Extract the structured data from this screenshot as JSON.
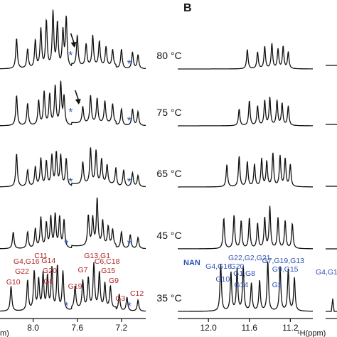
{
  "panel_label_b": "B",
  "chart_data": [
    {
      "type": "line",
      "panel": "A",
      "xlabel": "m)",
      "x_ticks": [
        "8.0",
        "7.6",
        "7.2"
      ],
      "x_tick_values": [
        8.0,
        7.6,
        7.2
      ],
      "xlim": [
        8.3,
        6.98
      ],
      "x_reversed": true,
      "legend": "none",
      "grid": false,
      "temperatures": [
        "80 °C",
        "75 °C",
        "65 °C",
        "45 °C",
        "35 °C"
      ],
      "markers": {
        "star": "*",
        "arrow": "↓",
        "star_color": "#2f52b5",
        "arrow_color": "#111111"
      },
      "series": [
        {
          "temp": "80 °C",
          "peaks": [
            [
              8.15,
              0.55
            ],
            [
              8.05,
              0.35
            ],
            [
              7.98,
              0.5
            ],
            [
              7.93,
              0.7
            ],
            [
              7.88,
              0.85
            ],
            [
              7.82,
              1.0
            ],
            [
              7.78,
              0.8
            ],
            [
              7.73,
              0.65
            ],
            [
              7.7,
              0.9
            ],
            [
              7.6,
              0.55
            ],
            [
              7.52,
              0.4
            ],
            [
              7.46,
              0.55
            ],
            [
              7.4,
              0.45
            ],
            [
              7.34,
              0.35
            ],
            [
              7.28,
              0.3
            ],
            [
              7.2,
              0.35
            ],
            [
              7.1,
              0.3
            ],
            [
              7.05,
              0.25
            ]
          ],
          "stars": [
            7.66,
            7.13
          ],
          "arrow": 7.62
        },
        {
          "temp": "75 °C",
          "peaks": [
            [
              8.15,
              0.55
            ],
            [
              8.05,
              0.4
            ],
            [
              7.95,
              0.45
            ],
            [
              7.9,
              0.6
            ],
            [
              7.85,
              0.55
            ],
            [
              7.8,
              0.7
            ],
            [
              7.75,
              0.75
            ],
            [
              7.72,
              0.5
            ],
            [
              7.55,
              0.3
            ],
            [
              7.48,
              0.5
            ],
            [
              7.42,
              0.45
            ],
            [
              7.35,
              0.4
            ],
            [
              7.28,
              0.35
            ],
            [
              7.2,
              0.3
            ],
            [
              7.1,
              0.3
            ],
            [
              7.05,
              0.25
            ]
          ],
          "stars": [
            7.66,
            7.13
          ],
          "arrow": 7.58
        },
        {
          "temp": "65 °C",
          "peaks": [
            [
              8.15,
              0.6
            ],
            [
              8.05,
              0.3
            ],
            [
              7.98,
              0.35
            ],
            [
              7.93,
              0.5
            ],
            [
              7.88,
              0.45
            ],
            [
              7.83,
              0.55
            ],
            [
              7.79,
              0.6
            ],
            [
              7.75,
              0.55
            ],
            [
              7.7,
              0.5
            ],
            [
              7.55,
              0.4
            ],
            [
              7.48,
              0.65
            ],
            [
              7.43,
              0.6
            ],
            [
              7.38,
              0.45
            ],
            [
              7.33,
              0.35
            ],
            [
              7.25,
              0.3
            ],
            [
              7.18,
              0.3
            ],
            [
              7.1,
              0.25
            ],
            [
              7.05,
              0.2
            ]
          ],
          "stars": [
            7.66,
            7.13
          ]
        },
        {
          "temp": "45 °C",
          "peaks": [
            [
              8.18,
              0.3
            ],
            [
              8.05,
              0.3
            ],
            [
              7.98,
              0.35
            ],
            [
              7.93,
              0.55
            ],
            [
              7.88,
              0.45
            ],
            [
              7.84,
              0.55
            ],
            [
              7.8,
              0.6
            ],
            [
              7.76,
              0.55
            ],
            [
              7.72,
              0.5
            ],
            [
              7.5,
              0.55
            ],
            [
              7.46,
              0.5
            ],
            [
              7.42,
              0.85
            ],
            [
              7.37,
              0.45
            ],
            [
              7.32,
              0.35
            ],
            [
              7.28,
              0.3
            ],
            [
              7.2,
              0.3
            ],
            [
              7.12,
              0.25
            ],
            [
              7.05,
              0.2
            ]
          ],
          "stars": [
            7.7,
            7.13
          ]
        },
        {
          "temp": "35 °C",
          "peaks": [
            [
              8.2,
              0.45
            ],
            [
              8.05,
              0.55
            ],
            [
              7.99,
              0.7
            ],
            [
              7.95,
              0.55
            ],
            [
              7.91,
              0.65
            ],
            [
              7.87,
              0.6
            ],
            [
              7.83,
              0.75
            ],
            [
              7.78,
              0.8
            ],
            [
              7.73,
              0.7
            ],
            [
              7.62,
              0.4
            ],
            [
              7.55,
              0.5
            ],
            [
              7.5,
              0.55
            ],
            [
              7.45,
              0.8
            ],
            [
              7.4,
              0.65
            ],
            [
              7.35,
              0.45
            ],
            [
              7.3,
              0.4
            ],
            [
              7.22,
              0.3
            ],
            [
              7.15,
              0.25
            ],
            [
              7.05,
              0.2
            ]
          ],
          "stars": [
            7.7,
            7.13
          ]
        }
      ],
      "assignments": {
        "color": "#b22525",
        "labels": [
          {
            "text": "G10",
            "x": 8.18,
            "y": 0.78
          },
          {
            "text": "G22",
            "x": 8.1,
            "y": 0.93
          },
          {
            "text": "G4,G16",
            "x": 8.06,
            "y": 1.07
          },
          {
            "text": "C11",
            "x": 7.93,
            "y": 1.15
          },
          {
            "text": "G14",
            "x": 7.86,
            "y": 1.08
          },
          {
            "text": "G20",
            "x": 7.85,
            "y": 0.94
          },
          {
            "text": "G8",
            "x": 7.86,
            "y": 0.79
          },
          {
            "text": "G19",
            "x": 7.62,
            "y": 0.72
          },
          {
            "text": "G7",
            "x": 7.55,
            "y": 0.95
          },
          {
            "text": "G13,G1",
            "x": 7.42,
            "y": 1.15
          },
          {
            "text": "C6,C18",
            "x": 7.33,
            "y": 1.07
          },
          {
            "text": "G15",
            "x": 7.32,
            "y": 0.94
          },
          {
            "text": "G9",
            "x": 7.27,
            "y": 0.8
          },
          {
            "text": "G3",
            "x": 7.21,
            "y": 0.55
          },
          {
            "text": "C12",
            "x": 7.06,
            "y": 0.62
          }
        ]
      }
    },
    {
      "type": "line",
      "panel": "B",
      "xlabel": "¹H(ppm)",
      "x_ticks": [
        "12.0",
        "11.6",
        "11.2"
      ],
      "x_tick_values": [
        12.0,
        11.6,
        11.2
      ],
      "xlim": [
        12.3,
        10.98
      ],
      "x_reversed": true,
      "legend": "none",
      "grid": false,
      "series_label": "NAN",
      "series": [
        {
          "temp": "80 °C",
          "peaks": [
            [
              11.62,
              0.35
            ],
            [
              11.52,
              0.3
            ],
            [
              11.45,
              0.4
            ],
            [
              11.38,
              0.45
            ],
            [
              11.32,
              0.35
            ],
            [
              11.27,
              0.4
            ],
            [
              11.22,
              0.3
            ]
          ]
        },
        {
          "temp": "75 °C",
          "peaks": [
            [
              11.7,
              0.3
            ],
            [
              11.6,
              0.45
            ],
            [
              11.52,
              0.35
            ],
            [
              11.45,
              0.45
            ],
            [
              11.4,
              0.5
            ],
            [
              11.33,
              0.45
            ],
            [
              11.28,
              0.4
            ],
            [
              11.22,
              0.35
            ]
          ]
        },
        {
          "temp": "65 °C",
          "peaks": [
            [
              11.82,
              0.4
            ],
            [
              11.7,
              0.55
            ],
            [
              11.62,
              0.45
            ],
            [
              11.55,
              0.4
            ],
            [
              11.48,
              0.5
            ],
            [
              11.43,
              0.45
            ],
            [
              11.37,
              0.6
            ],
            [
              11.3,
              0.55
            ],
            [
              11.25,
              0.5
            ],
            [
              11.2,
              0.4
            ]
          ]
        },
        {
          "temp": "45 °C",
          "peaks": [
            [
              11.85,
              0.55
            ],
            [
              11.75,
              0.6
            ],
            [
              11.68,
              0.5
            ],
            [
              11.6,
              0.55
            ],
            [
              11.52,
              0.45
            ],
            [
              11.45,
              0.55
            ],
            [
              11.4,
              0.75
            ],
            [
              11.32,
              0.55
            ],
            [
              11.25,
              0.5
            ],
            [
              11.18,
              0.45
            ]
          ]
        },
        {
          "temp": "35 °C",
          "peaks": [
            [
              11.88,
              0.85
            ],
            [
              11.78,
              0.7
            ],
            [
              11.72,
              0.75
            ],
            [
              11.66,
              0.8
            ],
            [
              11.58,
              0.5
            ],
            [
              11.5,
              0.55
            ],
            [
              11.42,
              0.9
            ],
            [
              11.3,
              0.8
            ],
            [
              11.22,
              0.75
            ],
            [
              11.16,
              0.6
            ]
          ]
        }
      ],
      "assignments": {
        "color": "#2f52b5",
        "labels": [
          {
            "text": "G22,G2,G21",
            "x": 11.6,
            "y": 1.12
          },
          {
            "text": "G7,G19,G13",
            "x": 11.27,
            "y": 1.08
          },
          {
            "text": "G4,G16",
            "x": 11.9,
            "y": 1.0
          },
          {
            "text": "G20",
            "x": 11.72,
            "y": 1.0
          },
          {
            "text": "G9,G15",
            "x": 11.25,
            "y": 0.96
          },
          {
            "text": "G1,G8",
            "x": 11.65,
            "y": 0.9
          },
          {
            "text": "G10",
            "x": 11.86,
            "y": 0.82
          },
          {
            "text": "G14",
            "x": 11.68,
            "y": 0.74
          },
          {
            "text": "G3",
            "x": 11.33,
            "y": 0.74
          }
        ]
      }
    },
    {
      "type": "line",
      "panel": "C",
      "series_label": "",
      "assignments": {
        "color": "#2f52b5",
        "labels": [
          {
            "text": "G4,G1",
            "x": 0.5,
            "y": 1.0
          }
        ]
      }
    }
  ]
}
